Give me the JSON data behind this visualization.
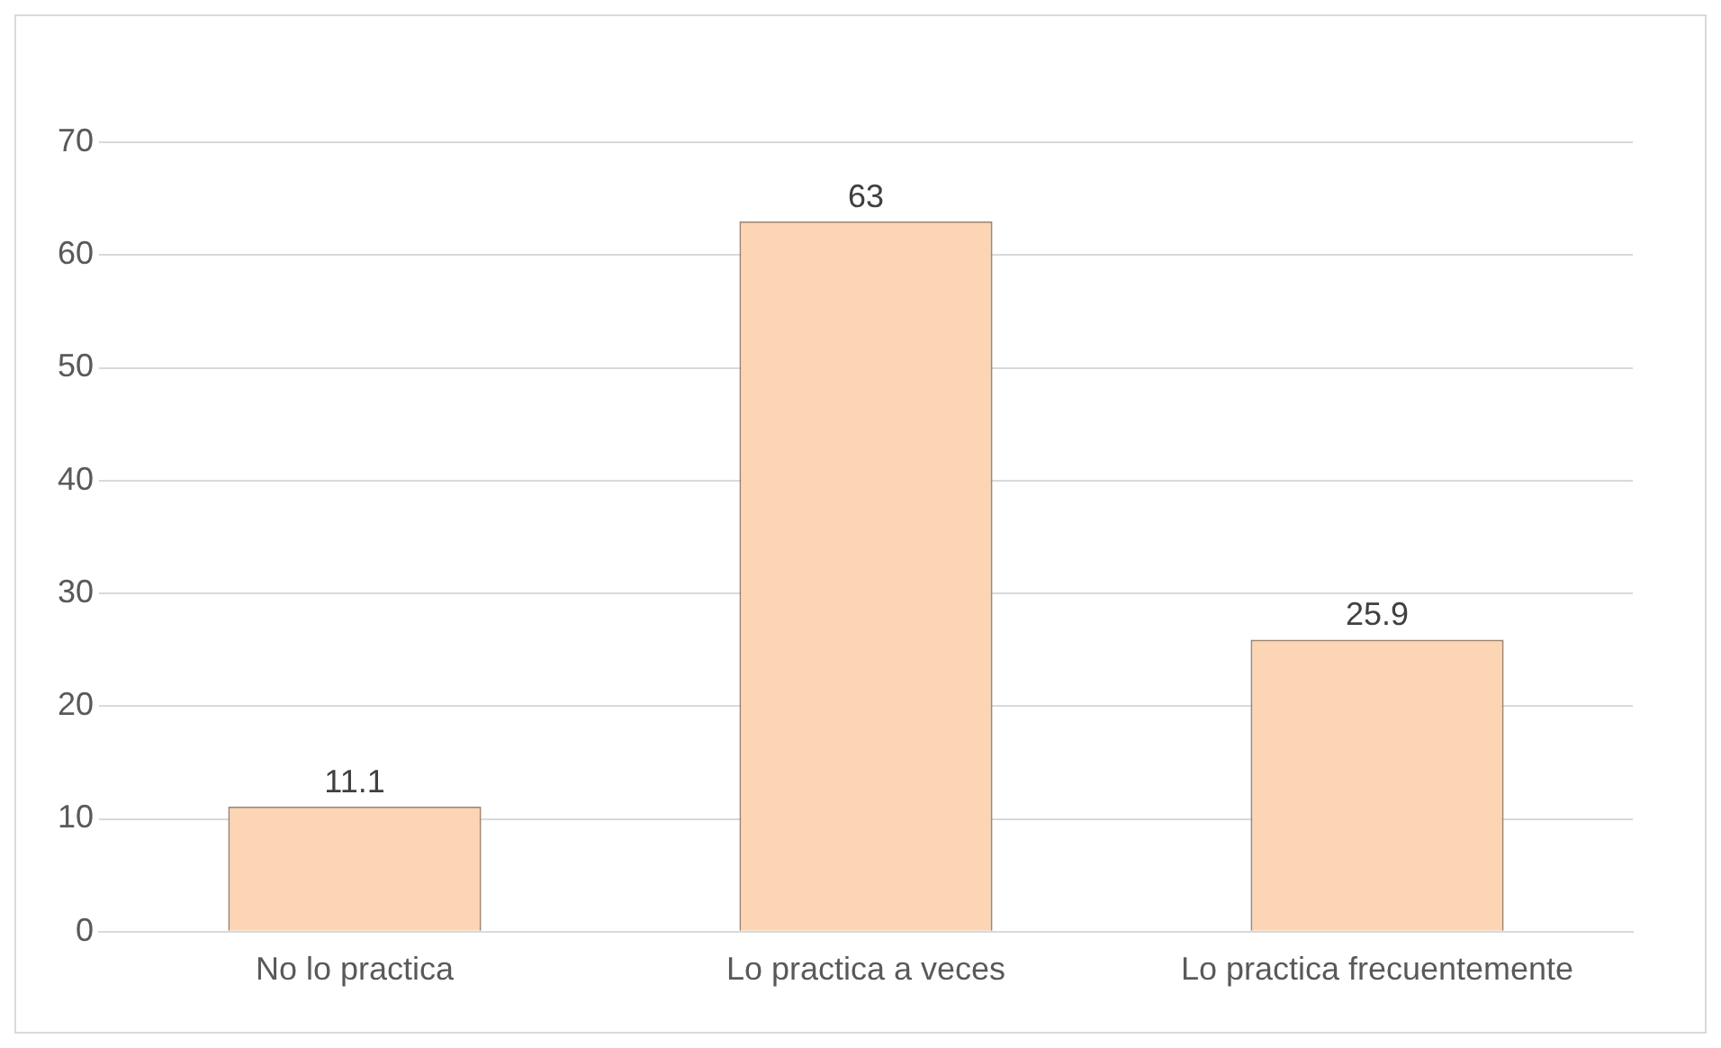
{
  "chart_data": {
    "type": "bar",
    "categories": [
      "No lo practica",
      "Lo practica a veces",
      "Lo practica frecuentemente"
    ],
    "values": [
      11.1,
      63,
      25.9
    ],
    "color": "#fcd5b4",
    "ylim": [
      0,
      70
    ],
    "yticks": [
      0,
      10,
      20,
      30,
      40,
      50,
      60,
      70
    ],
    "grid": "y",
    "data_labels": true,
    "legend": false
  }
}
